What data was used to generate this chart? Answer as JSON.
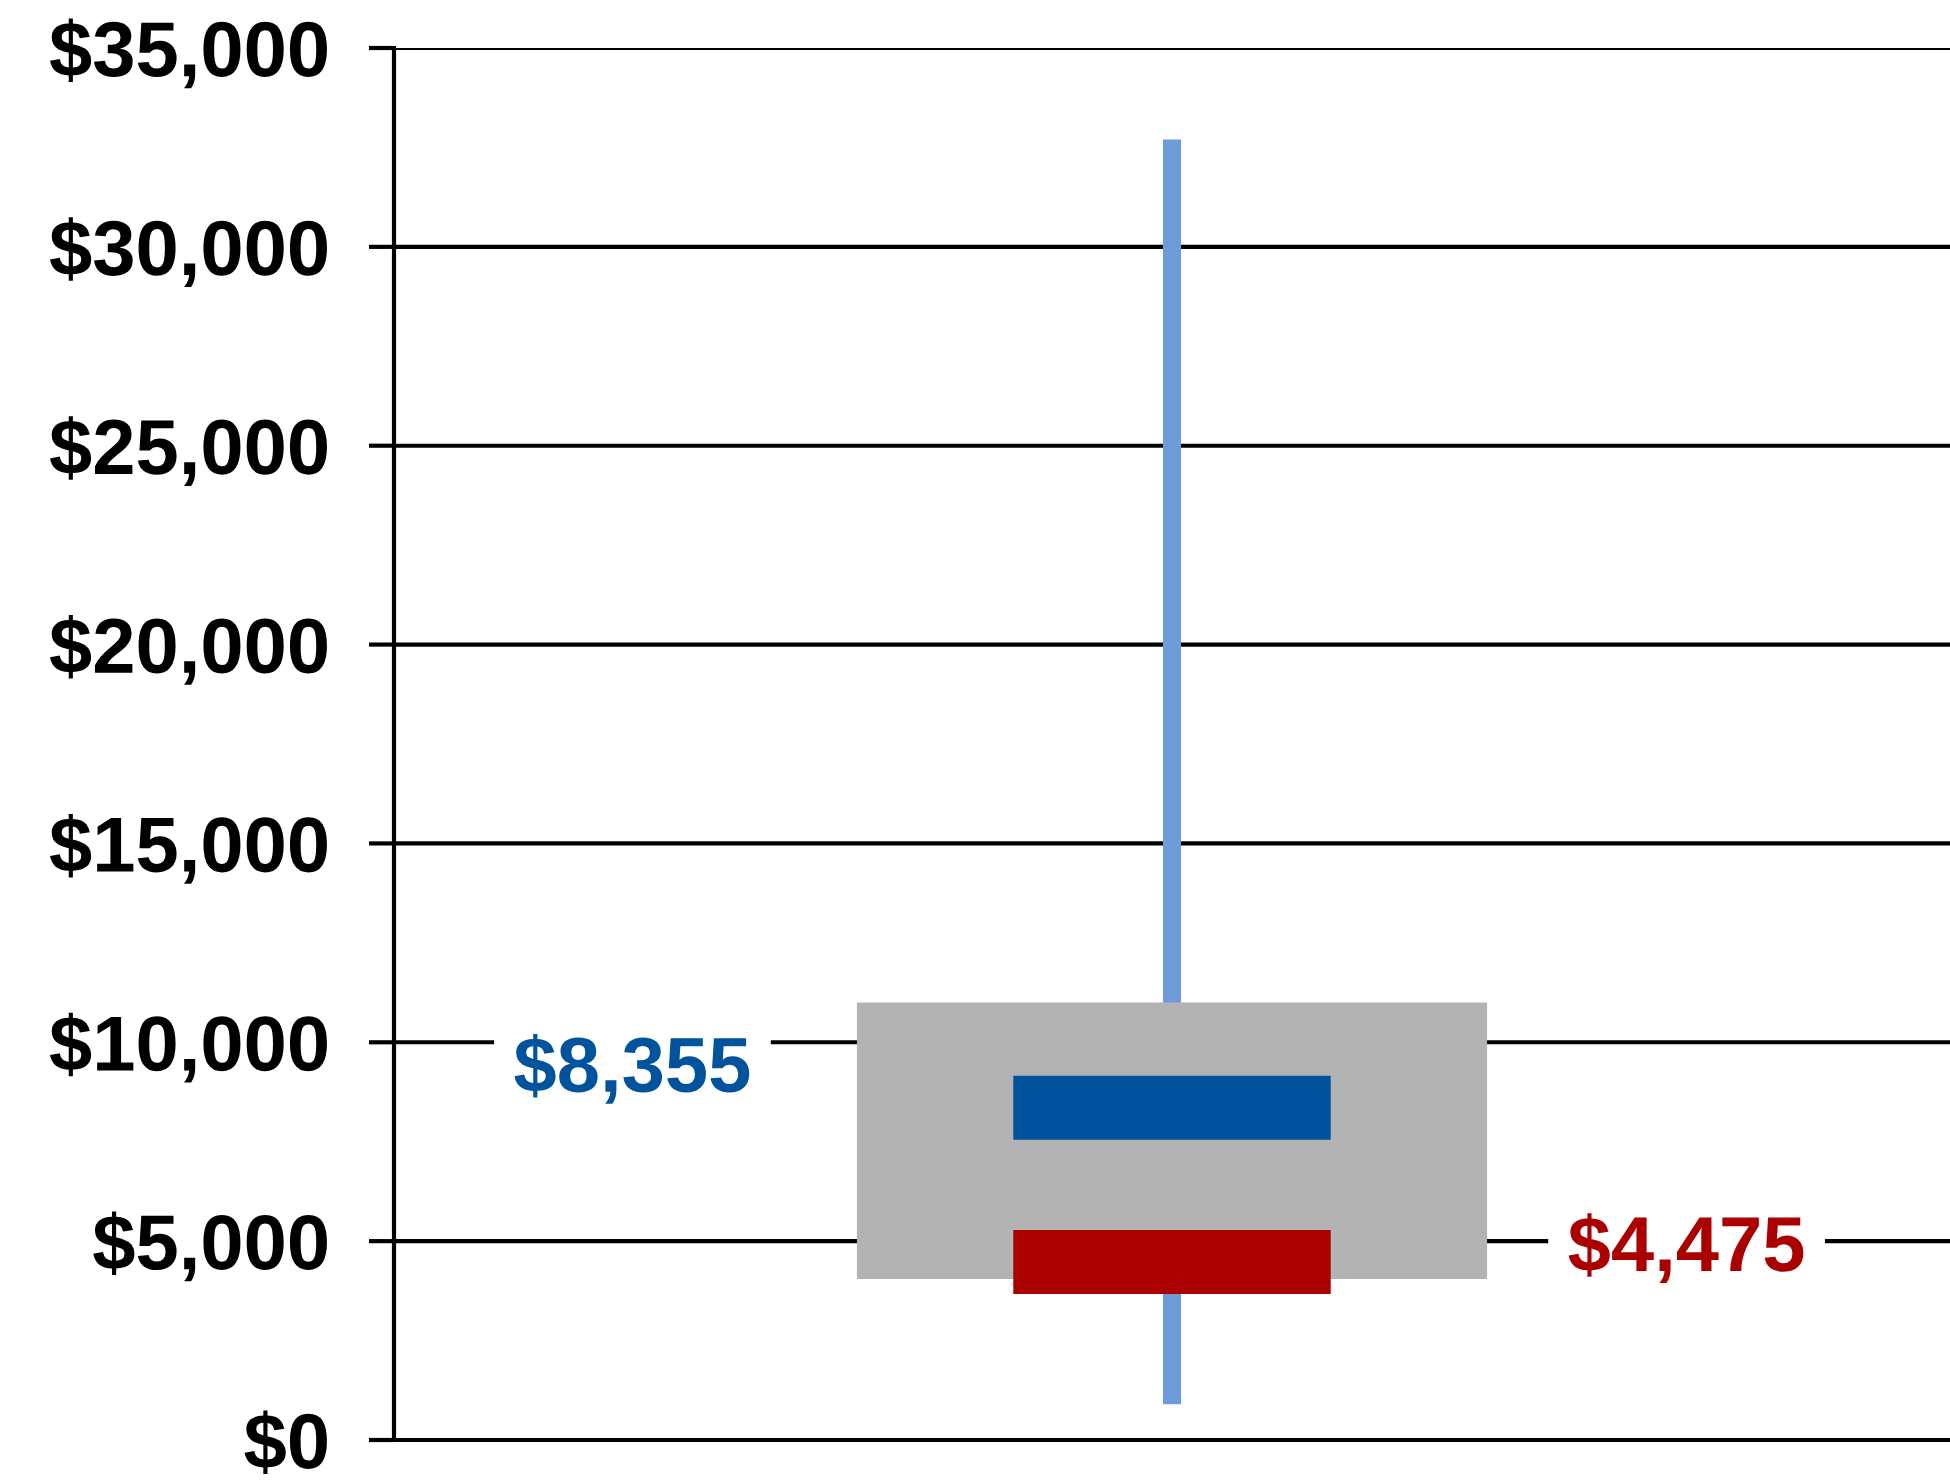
{
  "chart_data": {
    "type": "box",
    "categories": [
      null
    ],
    "boxes": [
      {
        "low": 900,
        "q1": 4050,
        "median": 4475,
        "q3": 11000,
        "high": 32700,
        "mean": 8355
      }
    ],
    "color": "#b3b3b3",
    "ylim": [
      0,
      35000
    ],
    "yticks": [
      {
        "value": 0,
        "label": "$0"
      },
      {
        "value": 5000,
        "label": "$5,000"
      },
      {
        "value": 10000,
        "label": "$10,000"
      },
      {
        "value": 15000,
        "label": "$15,000"
      },
      {
        "value": 20000,
        "label": "$20,000"
      },
      {
        "value": 25000,
        "label": "$25,000"
      },
      {
        "value": 30000,
        "label": "$30,000"
      },
      {
        "value": 35000,
        "label": "$35,000"
      }
    ],
    "grid": "y",
    "tick_labels": "y",
    "annotations": [
      "$8,355",
      "$4,475"
    ]
  }
}
